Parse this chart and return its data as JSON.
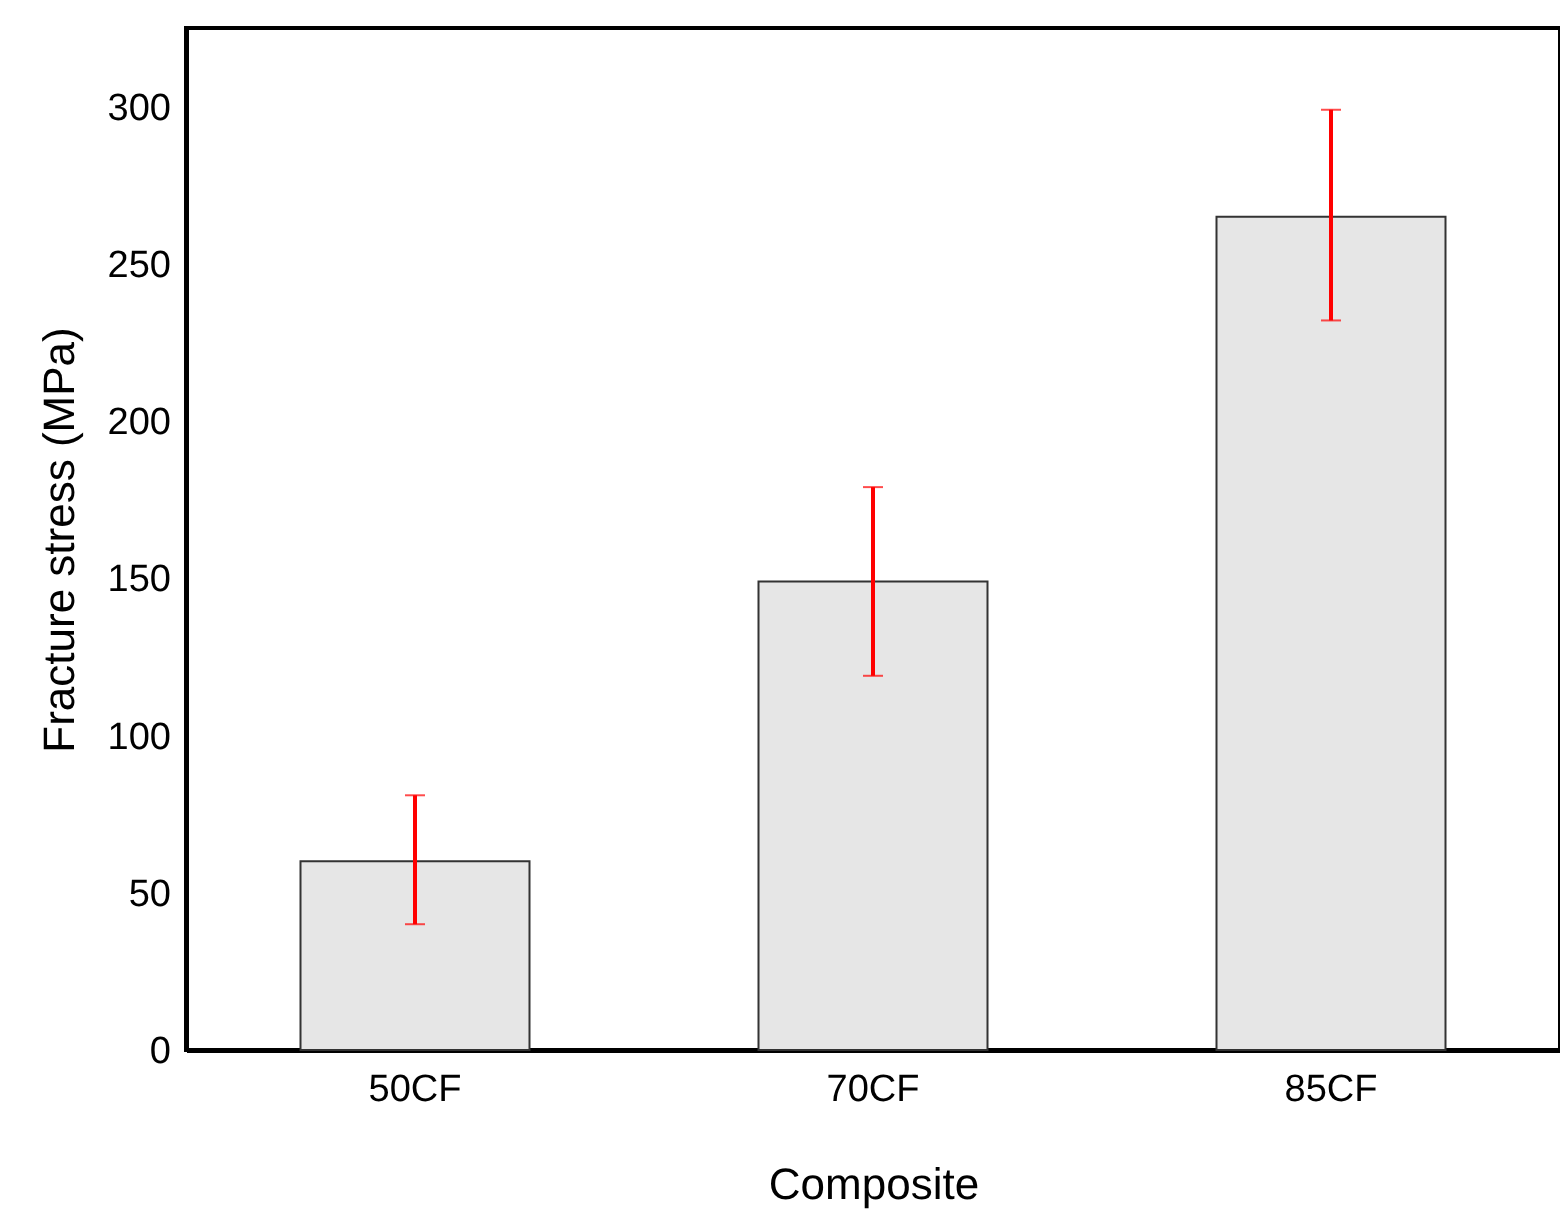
{
  "chart_data": {
    "type": "bar",
    "xlabel": "Composite",
    "ylabel": "Fracture stress (MPa)",
    "categories": [
      "50CF",
      "70CF",
      "85CF"
    ],
    "series": [
      {
        "color": "#e6e6e6",
        "values": [
          60,
          149,
          265
        ],
        "errors": [
          [
            40,
            81
          ],
          [
            119,
            179
          ],
          [
            232,
            299
          ]
        ]
      }
    ],
    "ylim": [
      0,
      325
    ],
    "yticks": [
      0,
      50,
      100,
      150,
      200,
      250,
      300
    ],
    "grid": false
  }
}
